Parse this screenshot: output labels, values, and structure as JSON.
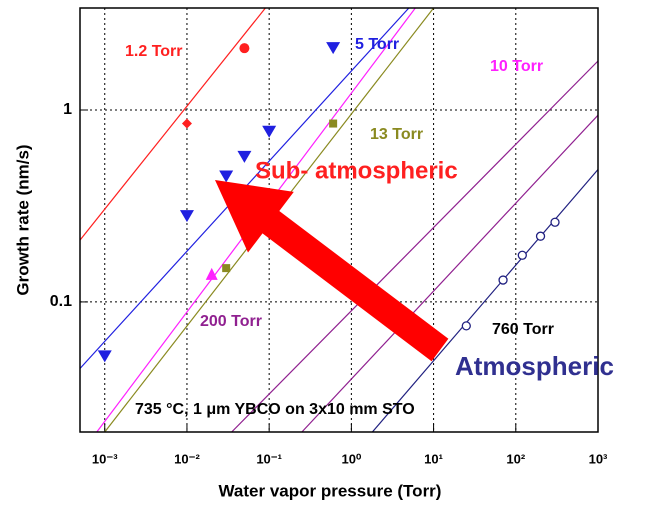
{
  "chart_data": {
    "type": "scatter",
    "xlabel": "Water vapor pressure (Torr)",
    "ylabel": "Growth rate (nm/s)",
    "xscale": "log",
    "yscale": "log",
    "grid": true,
    "xlim": [
      0.0005,
      1000
    ],
    "ylim": [
      0.021,
      3.4
    ],
    "xticks": [
      {
        "value": 0.001,
        "label": "10⁻³"
      },
      {
        "value": 0.01,
        "label": "10⁻²"
      },
      {
        "value": 0.1,
        "label": "10⁻¹"
      },
      {
        "value": 1,
        "label": "10⁰"
      },
      {
        "value": 10,
        "label": "10¹"
      },
      {
        "value": 100,
        "label": "10²"
      },
      {
        "value": 1000,
        "label": "10³"
      }
    ],
    "yticks": [
      0.1,
      1
    ],
    "series": [
      {
        "name": "1.2 Torr",
        "color": "#ff2020",
        "marker": "circle-diamond",
        "x": [
          0.01,
          0.05
        ],
        "values": [
          0.85,
          2.1
        ],
        "lines": [
          {
            "x": [
              0.0005,
              0.09
            ],
            "y": [
              0.21,
              3.4
            ]
          }
        ]
      },
      {
        "name": "5 Torr",
        "color": "#2020e0",
        "marker": "triangle-down",
        "x": [
          0.001,
          0.01,
          0.03,
          0.05,
          0.1,
          0.6
        ],
        "values": [
          0.052,
          0.28,
          0.45,
          0.57,
          0.77,
          2.1
        ],
        "lines": [
          {
            "x": [
              0.0005,
              5
            ],
            "y": [
              0.045,
              3.4
            ]
          }
        ]
      },
      {
        "name": "10 Torr",
        "color": "#ff20ff",
        "marker": "triangle-up",
        "x": [
          0.02
        ],
        "values": [
          0.14
        ],
        "lines": [
          {
            "x": [
              0.0008,
              6
            ],
            "y": [
              0.021,
              3.4
            ]
          }
        ]
      },
      {
        "name": "13 Torr",
        "color": "#8a8a20",
        "marker": "square",
        "x": [
          0.03,
          0.6
        ],
        "values": [
          0.15,
          0.85
        ],
        "lines": [
          {
            "x": [
              0.001,
              10
            ],
            "y": [
              0.021,
              3.4
            ]
          }
        ]
      },
      {
        "name": "200 Torr",
        "color": "#902090",
        "marker": "none",
        "x": [],
        "values": [],
        "lines": [
          {
            "x": [
              0.035,
              1000
            ],
            "y": [
              0.021,
              1.8
            ]
          },
          {
            "x": [
              0.25,
              1000
            ],
            "y": [
              0.021,
              0.94
            ]
          }
        ]
      },
      {
        "name": "760 Torr",
        "color": "#202080",
        "marker": "open-circle",
        "x": [
          25,
          70,
          120,
          200,
          300
        ],
        "values": [
          0.075,
          0.13,
          0.175,
          0.22,
          0.26
        ],
        "lines": [
          {
            "x": [
              1.8,
              1000
            ],
            "y": [
              0.021,
              0.49
            ]
          }
        ]
      }
    ],
    "annotations": [
      {
        "text": "Sub- atmospheric",
        "color": "#ff2020"
      },
      {
        "text": "Atmospheric",
        "color": "#303090"
      },
      {
        "text": "735 °C, 1 μm YBCO on 3x10 mm STO",
        "color": "#000000"
      }
    ]
  }
}
